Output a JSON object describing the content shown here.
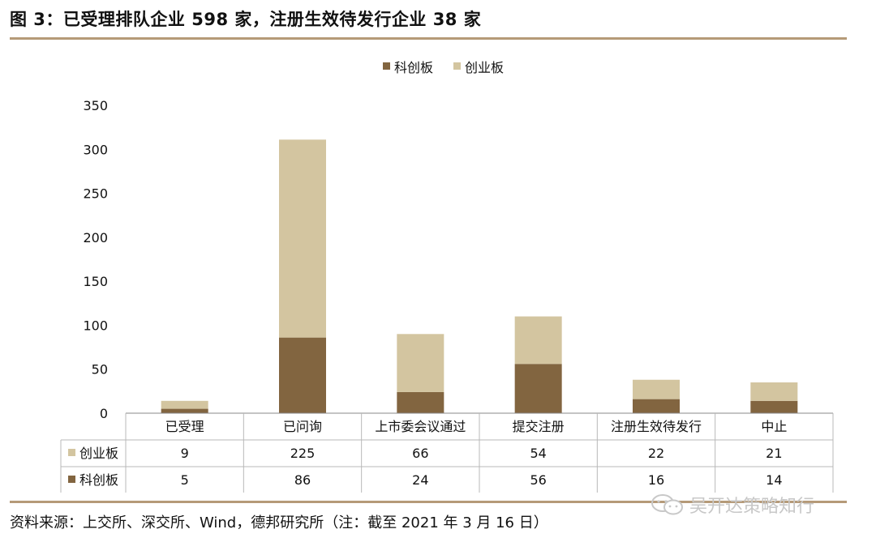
{
  "title": "图 3：已受理排队企业 598 家，注册生效待发行企业 38 家",
  "source": "资料来源：上交所、深交所、Wind，德邦研究所（注：截至 2021 年 3 月 16 日）",
  "watermark": "吴开达策略知行",
  "colors": {
    "kechuang": "#826540",
    "chuangye": "#d3c5a0",
    "rule": "#b59a78"
  },
  "chart_data": {
    "type": "bar",
    "stacked": true,
    "title": "",
    "xlabel": "",
    "ylabel": "",
    "ylim": [
      0,
      350
    ],
    "yticks": [
      0,
      50,
      100,
      150,
      200,
      250,
      300,
      350
    ],
    "legend_position": "top-center",
    "grid": false,
    "categories": [
      "已受理",
      "已问询",
      "上市委会议通过",
      "提交注册",
      "注册生效待发行",
      "中止"
    ],
    "series": [
      {
        "name": "科创板",
        "color": "#826540",
        "values": [
          5,
          86,
          24,
          56,
          16,
          14
        ]
      },
      {
        "name": "创业板",
        "color": "#d3c5a0",
        "values": [
          9,
          225,
          66,
          54,
          22,
          21
        ]
      }
    ],
    "legend_order": [
      0,
      1
    ],
    "table_order": [
      1,
      0
    ]
  }
}
